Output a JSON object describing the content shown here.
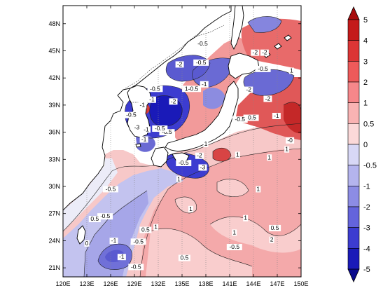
{
  "map": {
    "lon_ticks": [
      "120E",
      "123E",
      "126E",
      "129E",
      "132E",
      "135E",
      "138E",
      "141E",
      "144E",
      "147E",
      "150E"
    ],
    "lat_ticks": [
      "48N",
      "45N",
      "42N",
      "39N",
      "36N",
      "33N",
      "30N",
      "27N",
      "24N",
      "21N"
    ],
    "extent": {
      "lon_min": 120,
      "lon_max": 150,
      "lat_min": 20,
      "lat_max": 50
    },
    "contour_labels": [
      {
        "text": "-0.5",
        "lon": 137.6,
        "lat": 45.6
      },
      {
        "text": "-0.5",
        "lon": 137.4,
        "lat": 43.5
      },
      {
        "text": "-2",
        "lon": 134.7,
        "lat": 43.3
      },
      {
        "text": "-1",
        "lon": 137.8,
        "lat": 41.1
      },
      {
        "text": "1-0.5",
        "lon": 136.2,
        "lat": 40.6
      },
      {
        "text": "-0.5",
        "lon": 131.6,
        "lat": 40.6
      },
      {
        "text": "-1",
        "lon": 131.2,
        "lat": 39.4
      },
      {
        "text": "-2",
        "lon": 133.9,
        "lat": 39.2
      },
      {
        "text": "-1",
        "lon": 130.0,
        "lat": 38.8
      },
      {
        "text": "-0.5",
        "lon": 128.6,
        "lat": 37.7
      },
      {
        "text": "-0.5",
        "lon": 133.1,
        "lat": 35.8
      },
      {
        "text": "-3",
        "lon": 129.3,
        "lat": 36.3
      },
      {
        "text": "-1",
        "lon": 130.5,
        "lat": 36.1
      },
      {
        "text": "-0.5",
        "lon": 132.2,
        "lat": 36.2
      },
      {
        "text": "-1",
        "lon": 130.2,
        "lat": 35.0
      },
      {
        "text": "-2",
        "lon": 137.2,
        "lat": 33.2
      },
      {
        "text": "-0.5",
        "lon": 135.2,
        "lat": 32.4
      },
      {
        "text": "-3",
        "lon": 137.6,
        "lat": 31.9
      },
      {
        "text": "-0.5",
        "lon": 145.2,
        "lat": 42.8
      },
      {
        "text": "-2",
        "lon": 143.4,
        "lat": 40.5
      },
      {
        "text": "-2",
        "lon": 145.8,
        "lat": 39.5
      },
      {
        "text": "-1",
        "lon": 146.9,
        "lat": 37.6
      },
      {
        "text": "1",
        "lon": 148.8,
        "lat": 42.6
      },
      {
        "text": "-2",
        "lon": 145.4,
        "lat": 44.6
      },
      {
        "text": "-2",
        "lon": 144.2,
        "lat": 44.6
      },
      {
        "text": "-0.5",
        "lon": 143.7,
        "lat": 37.4
      },
      {
        "text": "-0.5",
        "lon": 142.3,
        "lat": 37.2
      },
      {
        "text": "-0",
        "lon": 148.6,
        "lat": 34.9
      },
      {
        "text": "1",
        "lon": 142.0,
        "lat": 33.3
      },
      {
        "text": "1",
        "lon": 138.0,
        "lat": 34.5
      },
      {
        "text": "1",
        "lon": 148.2,
        "lat": 33.9
      },
      {
        "text": "-0.5",
        "lon": 126.0,
        "lat": 29.5
      },
      {
        "text": "1",
        "lon": 134.6,
        "lat": 30.6
      },
      {
        "text": "-0.5",
        "lon": 125.3,
        "lat": 26.5
      },
      {
        "text": "0.5",
        "lon": 124.0,
        "lat": 26.2
      },
      {
        "text": "0.5",
        "lon": 130.4,
        "lat": 25.0
      },
      {
        "text": "1",
        "lon": 131.7,
        "lat": 25.3
      },
      {
        "text": "1",
        "lon": 136.1,
        "lat": 27.3
      },
      {
        "text": "1",
        "lon": 141.6,
        "lat": 24.7
      },
      {
        "text": "1",
        "lon": 143.0,
        "lat": 26.3
      },
      {
        "text": "1",
        "lon": 144.6,
        "lat": 29.5
      },
      {
        "text": "1",
        "lon": 146.0,
        "lat": 33.0
      },
      {
        "text": "0.5",
        "lon": 146.7,
        "lat": 25.2
      },
      {
        "text": "2",
        "lon": 146.3,
        "lat": 23.9
      },
      {
        "text": "-0.5",
        "lon": 141.6,
        "lat": 23.1
      },
      {
        "text": "0",
        "lon": 123.0,
        "lat": 23.5
      },
      {
        "text": "-1",
        "lon": 126.4,
        "lat": 23.8
      },
      {
        "text": "-0.5",
        "lon": 129.5,
        "lat": 23.7
      },
      {
        "text": "0.5",
        "lon": 135.3,
        "lat": 21.9
      },
      {
        "text": "-0.5",
        "lon": 129.2,
        "lat": 20.9
      },
      {
        "text": "-1",
        "lon": 127.4,
        "lat": 22.0
      }
    ]
  },
  "colorbar": {
    "labels": [
      "5",
      "4",
      "3",
      "2",
      "1",
      "0.5",
      "0",
      "-0.5",
      "-1",
      "-2",
      "-3",
      "-4",
      "-5"
    ],
    "colors": [
      "#c41a1a",
      "#dc3535",
      "#ee5a5a",
      "#f6878a",
      "#f9b3b3",
      "#fbd9d9",
      "#d8d8f6",
      "#b4b4ee",
      "#8c8ce4",
      "#6464dc",
      "#3c3cd0",
      "#1a1ab8"
    ],
    "top_cap_color": "#a80c0c",
    "bottom_cap_color": "#0a0a8c"
  }
}
